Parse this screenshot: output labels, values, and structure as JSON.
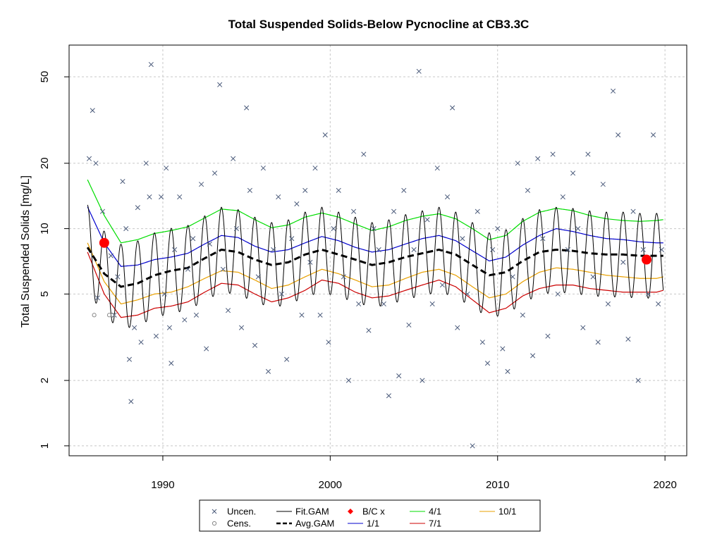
{
  "chart_data": {
    "type": "line",
    "title": "Total Suspended Solids-Below Pycnocline at CB3.3C",
    "xlabel": "",
    "ylabel": "Total Suspended Solids [mg/L]",
    "xlim": [
      1984.4,
      2021.3
    ],
    "ylim": [
      0.9,
      70
    ],
    "y_scale": "log",
    "grid": true,
    "legend_position": "bottom-center",
    "x_ticks": [
      1990,
      2000,
      2010,
      2020
    ],
    "y_ticks": [
      1,
      2,
      5,
      10,
      20,
      50
    ],
    "colors": {
      "uncensored": "#4a5a7a",
      "censored": "#888888",
      "fit_gam": "#000000",
      "avg_gam": "#000000",
      "bc_x": "#ff0000",
      "ratio_1_1": "#0000cd",
      "ratio_4_1": "#00dd00",
      "ratio_7_1": "#cc0000",
      "ratio_10_1": "#e8a000",
      "grid": "#c8c8c8"
    },
    "legend": [
      {
        "key": "uncen",
        "label": "Uncen.",
        "symbol": "x"
      },
      {
        "key": "cens",
        "label": "Cens.",
        "symbol": "circle"
      },
      {
        "key": "fit_gam",
        "label": "Fit.GAM",
        "symbol": "line"
      },
      {
        "key": "avg_gam",
        "label": "Avg.GAM",
        "symbol": "dashed"
      },
      {
        "key": "bc_x",
        "label": "B/C x",
        "symbol": "dot"
      },
      {
        "key": "ratio_1_1",
        "label": "1/1",
        "symbol": "line"
      },
      {
        "key": "ratio_4_1",
        "label": "4/1",
        "symbol": "line"
      },
      {
        "key": "ratio_7_1",
        "label": "7/1",
        "symbol": "line"
      },
      {
        "key": "ratio_10_1",
        "label": "10/1",
        "symbol": "line"
      }
    ],
    "series": [
      {
        "name": "Avg.GAM",
        "key": "avg_gam",
        "x": [
          1985.5,
          1986.5,
          1987.5,
          1988.5,
          1989.5,
          1990.5,
          1991.5,
          1992.5,
          1993.5,
          1994.5,
          1995.5,
          1996.5,
          1997.5,
          1998.5,
          1999.5,
          2000.5,
          2001.5,
          2002.5,
          2003.5,
          2004.5,
          2005.5,
          2006.5,
          2007.5,
          2008.5,
          2009.5,
          2010.5,
          2011.5,
          2012.5,
          2013.5,
          2014.5,
          2015.5,
          2016.5,
          2017.5,
          2018.5,
          2019.5,
          2019.9
        ],
        "y": [
          8.2,
          6.2,
          5.4,
          5.6,
          6.1,
          6.4,
          6.6,
          7.3,
          8.0,
          7.8,
          7.2,
          6.8,
          7.0,
          7.6,
          8.0,
          7.6,
          7.2,
          6.8,
          7.0,
          7.4,
          7.7,
          8.0,
          7.6,
          6.8,
          6.1,
          6.3,
          7.1,
          7.8,
          8.0,
          7.9,
          7.7,
          7.6,
          7.6,
          7.5,
          7.5,
          7.5
        ]
      },
      {
        "name": "Fit.GAM",
        "key": "fit_gam",
        "amplitude": 0.36,
        "x": [
          1985.5,
          1986.5,
          1987.5,
          1988.5,
          1989.5,
          1990.5,
          1991.5,
          1992.5,
          1993.5,
          1994.5,
          1995.5,
          1996.5,
          1997.5,
          1998.5,
          1999.5,
          2000.5,
          2001.5,
          2002.5,
          2003.5,
          2004.5,
          2005.5,
          2006.5,
          2007.5,
          2008.5,
          2009.5,
          2010.5,
          2011.5,
          2012.5,
          2013.5,
          2014.5,
          2015.5,
          2016.5,
          2017.5,
          2018.5,
          2019.5,
          2019.9
        ],
        "y": [
          8.2,
          6.2,
          5.4,
          5.6,
          6.1,
          6.4,
          6.6,
          7.3,
          8.0,
          7.8,
          7.2,
          6.8,
          7.0,
          7.6,
          8.0,
          7.6,
          7.2,
          6.8,
          7.0,
          7.4,
          7.7,
          8.0,
          7.6,
          6.8,
          6.1,
          6.3,
          7.1,
          7.8,
          8.0,
          7.9,
          7.7,
          7.6,
          7.6,
          7.5,
          7.5,
          7.5
        ]
      },
      {
        "name": "1/1",
        "key": "ratio_1_1",
        "x": [
          1985.5,
          1986.5,
          1987.5,
          1988.5,
          1989.5,
          1990.5,
          1991.5,
          1992.5,
          1993.5,
          1994.5,
          1995.5,
          1996.5,
          1997.5,
          1998.5,
          1999.5,
          2000.5,
          2001.5,
          2002.5,
          2003.5,
          2004.5,
          2005.5,
          2006.5,
          2007.5,
          2008.5,
          2009.5,
          2010.5,
          2011.5,
          2012.5,
          2013.5,
          2014.5,
          2015.5,
          2016.5,
          2017.5,
          2018.5,
          2019.5,
          2019.9
        ],
        "y": [
          12.6,
          8.6,
          6.7,
          6.8,
          7.2,
          7.4,
          7.7,
          8.5,
          9.3,
          9.1,
          8.3,
          7.8,
          8.0,
          8.6,
          9.2,
          8.8,
          8.2,
          7.8,
          8.0,
          8.5,
          9.0,
          9.3,
          8.8,
          7.9,
          7.1,
          7.4,
          8.4,
          9.3,
          10.0,
          9.7,
          9.3,
          9.0,
          8.9,
          8.7,
          8.6,
          8.6
        ]
      },
      {
        "name": "4/1",
        "key": "ratio_4_1",
        "x": [
          1985.5,
          1986.5,
          1987.5,
          1988.5,
          1989.5,
          1990.5,
          1991.5,
          1992.5,
          1993.5,
          1994.5,
          1995.5,
          1996.5,
          1997.5,
          1998.5,
          1999.5,
          2000.5,
          2001.5,
          2002.5,
          2003.5,
          2004.5,
          2005.5,
          2006.5,
          2007.5,
          2008.5,
          2009.5,
          2010.5,
          2011.5,
          2012.5,
          2013.5,
          2014.5,
          2015.5,
          2016.5,
          2017.5,
          2018.5,
          2019.5,
          2019.9
        ],
        "y": [
          16.8,
          11.5,
          8.6,
          8.9,
          9.5,
          9.8,
          10.2,
          11.2,
          12.3,
          12.1,
          11.0,
          10.1,
          10.4,
          11.3,
          11.8,
          11.3,
          10.5,
          9.8,
          10.2,
          10.9,
          11.4,
          11.7,
          11.1,
          10.0,
          8.9,
          9.3,
          10.8,
          11.9,
          12.4,
          12.1,
          11.5,
          11.1,
          10.9,
          10.8,
          10.9,
          11.0
        ]
      },
      {
        "name": "7/1",
        "key": "ratio_7_1",
        "x": [
          1985.5,
          1986.5,
          1987.5,
          1988.5,
          1989.5,
          1990.5,
          1991.5,
          1992.5,
          1993.5,
          1994.5,
          1995.5,
          1996.5,
          1997.5,
          1998.5,
          1999.5,
          2000.5,
          2001.5,
          2002.5,
          2003.5,
          2004.5,
          2005.5,
          2006.5,
          2007.5,
          2008.5,
          2009.5,
          2010.5,
          2011.5,
          2012.5,
          2013.5,
          2014.5,
          2015.5,
          2016.5,
          2017.5,
          2018.5,
          2019.5,
          2019.9
        ],
        "y": [
          7.8,
          5.0,
          3.9,
          4.0,
          4.3,
          4.4,
          4.6,
          5.1,
          5.6,
          5.5,
          5.0,
          4.6,
          4.8,
          5.2,
          5.8,
          5.6,
          5.1,
          4.8,
          4.9,
          5.2,
          5.5,
          5.8,
          5.4,
          4.7,
          4.1,
          4.3,
          4.9,
          5.3,
          5.5,
          5.5,
          5.3,
          5.2,
          5.1,
          5.1,
          5.1,
          5.2
        ]
      },
      {
        "name": "10/1",
        "key": "ratio_10_1",
        "x": [
          1985.5,
          1986.5,
          1987.5,
          1988.5,
          1989.5,
          1990.5,
          1991.5,
          1992.5,
          1993.5,
          1994.5,
          1995.5,
          1996.5,
          1997.5,
          1998.5,
          1999.5,
          2000.5,
          2001.5,
          2002.5,
          2003.5,
          2004.5,
          2005.5,
          2006.5,
          2007.5,
          2008.5,
          2009.5,
          2010.5,
          2011.5,
          2012.5,
          2013.5,
          2014.5,
          2015.5,
          2016.5,
          2017.5,
          2018.5,
          2019.5,
          2019.9
        ],
        "y": [
          8.6,
          5.7,
          4.5,
          4.7,
          5.0,
          5.1,
          5.4,
          5.9,
          6.4,
          6.3,
          5.8,
          5.3,
          5.5,
          6.0,
          6.5,
          6.2,
          5.8,
          5.4,
          5.5,
          5.9,
          6.3,
          6.5,
          6.1,
          5.4,
          4.8,
          5.0,
          5.7,
          6.3,
          6.6,
          6.5,
          6.3,
          6.1,
          6.0,
          5.9,
          5.9,
          6.0
        ]
      },
      {
        "name": "B/C x",
        "key": "bc_x",
        "x": [
          1986.5,
          2018.9
        ],
        "y": [
          8.6,
          7.2
        ]
      },
      {
        "name": "Cens.",
        "key": "cens",
        "x": [
          1985.9,
          1986.8,
          1987.0
        ],
        "y": [
          4.0,
          4.0,
          4.0
        ]
      },
      {
        "name": "Uncen.",
        "key": "uncen",
        "x": [
          1985.6,
          1985.8,
          1986.0,
          1986.1,
          1986.4,
          1986.9,
          1987.1,
          1987.3,
          1987.6,
          1987.8,
          1988.0,
          1988.1,
          1988.3,
          1988.5,
          1988.7,
          1989.0,
          1989.2,
          1989.3,
          1989.6,
          1989.9,
          1990.1,
          1990.2,
          1990.4,
          1990.5,
          1990.7,
          1991.0,
          1991.3,
          1991.5,
          1991.8,
          1992.0,
          1992.3,
          1992.6,
          1992.8,
          1993.1,
          1993.4,
          1993.6,
          1993.9,
          1994.2,
          1994.4,
          1994.7,
          1995.0,
          1995.2,
          1995.5,
          1995.7,
          1996.0,
          1996.3,
          1996.6,
          1996.9,
          1997.1,
          1997.4,
          1997.7,
          1998.0,
          1998.3,
          1998.5,
          1998.8,
          1999.1,
          1999.4,
          1999.7,
          1999.9,
          2000.2,
          2000.5,
          2000.8,
          2001.1,
          2001.4,
          2001.7,
          2002.0,
          2002.3,
          2002.6,
          2002.9,
          2003.2,
          2003.5,
          2003.8,
          2004.1,
          2004.4,
          2004.7,
          2005.0,
          2005.3,
          2005.5,
          2005.8,
          2006.1,
          2006.4,
          2006.7,
          2007.0,
          2007.3,
          2007.6,
          2007.9,
          2008.2,
          2008.5,
          2008.8,
          2009.1,
          2009.4,
          2009.7,
          2010.0,
          2010.3,
          2010.6,
          2010.9,
          2011.2,
          2011.5,
          2011.8,
          2012.1,
          2012.4,
          2012.7,
          2013.0,
          2013.3,
          2013.6,
          2013.9,
          2014.2,
          2014.5,
          2014.8,
          2015.1,
          2015.4,
          2015.7,
          2016.0,
          2016.3,
          2016.6,
          2016.9,
          2017.2,
          2017.5,
          2017.8,
          2018.1,
          2018.4,
          2018.7,
          2019.0,
          2019.3,
          2019.6,
          2019.8
        ],
        "y": [
          21.0,
          35.0,
          20.0,
          4.8,
          12.0,
          7.5,
          4.0,
          6.0,
          16.5,
          10.0,
          2.5,
          1.6,
          3.5,
          12.5,
          3.0,
          20.0,
          14.0,
          57.0,
          3.2,
          14.0,
          5.0,
          19.0,
          3.5,
          2.4,
          8.0,
          14.0,
          3.8,
          6.5,
          9.0,
          4.0,
          16.0,
          2.8,
          8.5,
          18.0,
          46.0,
          6.5,
          4.2,
          21.0,
          10.0,
          3.5,
          36.0,
          15.0,
          2.9,
          6.0,
          19.0,
          2.2,
          8.0,
          14.0,
          5.0,
          2.5,
          9.0,
          13.0,
          4.0,
          15.0,
          7.0,
          19.0,
          4.0,
          27.0,
          3.0,
          10.0,
          15.0,
          6.0,
          2.0,
          12.0,
          4.5,
          22.0,
          3.4,
          10.0,
          8.0,
          4.5,
          1.7,
          12.0,
          2.1,
          15.0,
          3.6,
          8.0,
          53.0,
          2.0,
          11.0,
          4.5,
          19.0,
          5.5,
          14.0,
          36.0,
          3.5,
          9.0,
          5.0,
          1.0,
          12.0,
          3.0,
          2.4,
          8.0,
          10.0,
          2.8,
          2.2,
          6.0,
          20.0,
          4.0,
          15.0,
          2.6,
          21.0,
          9.0,
          3.2,
          22.0,
          5.0,
          14.0,
          8.0,
          18.0,
          10.0,
          3.5,
          22.0,
          6.0,
          3.0,
          16.0,
          4.5,
          43.0,
          27.0,
          7.0,
          3.1,
          12.0,
          2.0,
          8.0,
          5.0,
          27.0,
          4.5,
          8.0
        ]
      }
    ]
  }
}
